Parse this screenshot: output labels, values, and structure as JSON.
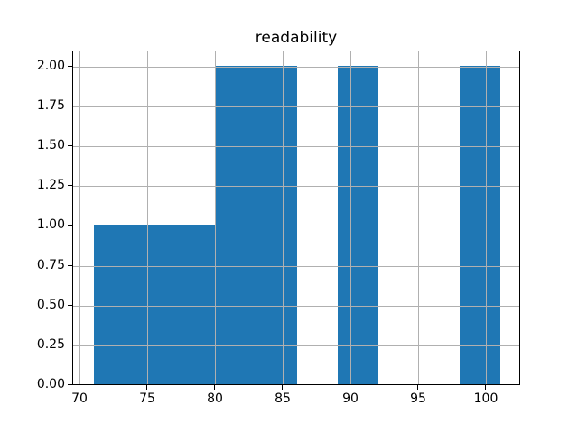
{
  "chart_data": {
    "type": "histogram",
    "title": "readability",
    "xlabel": "",
    "ylabel": "",
    "bin_edges": [
      71,
      74,
      77,
      80,
      83,
      86,
      89,
      92,
      95,
      98,
      101
    ],
    "counts": [
      1,
      1,
      1,
      2,
      2,
      0,
      2,
      0,
      0,
      2
    ],
    "visible_bars": [
      {
        "from": 71,
        "to": 80,
        "height": 1
      },
      {
        "from": 80,
        "to": 86,
        "height": 2
      },
      {
        "from": 89,
        "to": 92,
        "height": 2
      },
      {
        "from": 98,
        "to": 101,
        "height": 2
      }
    ],
    "xlim": [
      69.5,
      102.5
    ],
    "ylim": [
      0,
      2.1
    ],
    "xticks": [
      70,
      75,
      80,
      85,
      90,
      95,
      100
    ],
    "xtick_labels": [
      "70",
      "75",
      "80",
      "85",
      "90",
      "95",
      "100"
    ],
    "yticks": [
      0,
      0.25,
      0.5,
      0.75,
      1,
      1.25,
      1.5,
      1.75,
      2
    ],
    "ytick_labels": [
      "0.00",
      "0.25",
      "0.50",
      "0.75",
      "1.00",
      "1.25",
      "1.50",
      "1.75",
      "2.00"
    ],
    "grid": true,
    "grid_above_bars": true,
    "legend": null,
    "colors": {
      "bar": "#1f77b4",
      "grid": "#b0b0b0",
      "spine": "#000000",
      "text": "#000000",
      "background": "#ffffff"
    }
  }
}
